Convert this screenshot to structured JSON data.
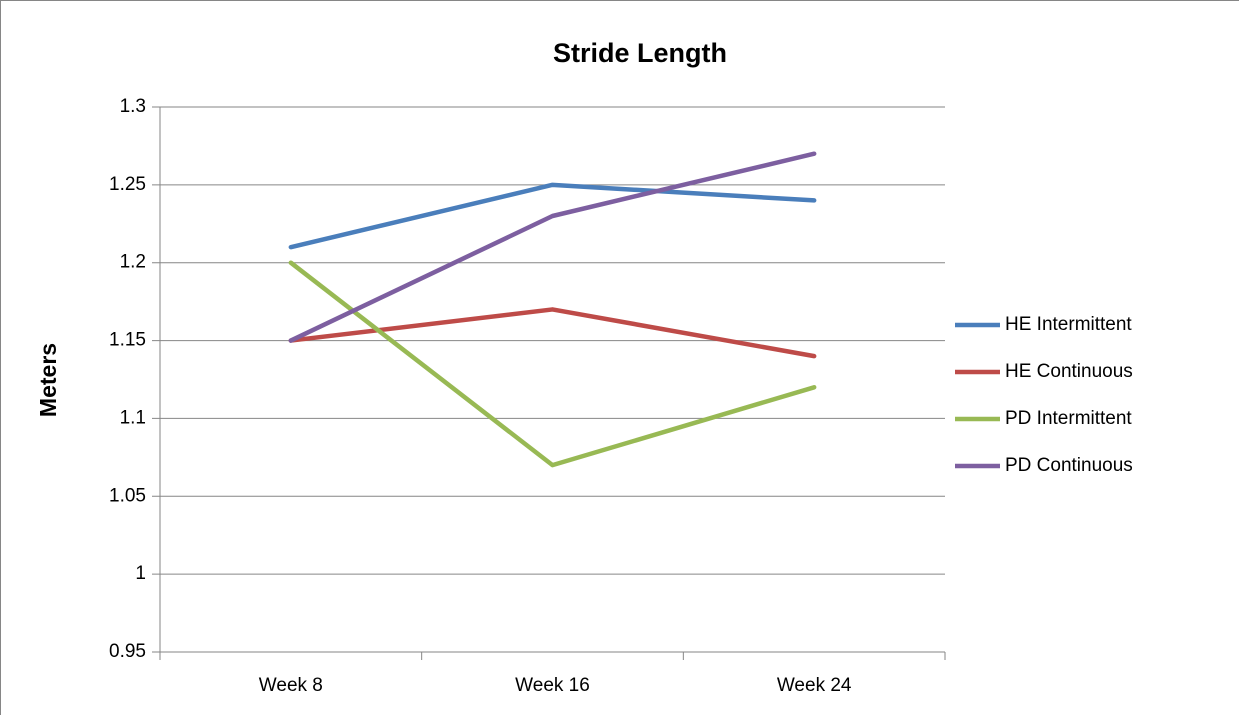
{
  "chart_data": {
    "type": "line",
    "title": "Stride Length",
    "y_label": "Meters",
    "categories": [
      "Week 8",
      "Week 16",
      "Week 24"
    ],
    "series": [
      {
        "name": "HE Intermittent",
        "color": "#4a7ebb",
        "values": [
          1.21,
          1.25,
          1.24
        ]
      },
      {
        "name": "HE Continuous",
        "color": "#be4b48",
        "values": [
          1.15,
          1.17,
          1.14
        ]
      },
      {
        "name": "PD Intermittent",
        "color": "#98b954",
        "values": [
          1.2,
          1.07,
          1.12
        ]
      },
      {
        "name": "PD Continuous",
        "color": "#7d5fa0",
        "values": [
          1.15,
          1.23,
          1.27
        ]
      }
    ],
    "ylim": [
      0.95,
      1.3
    ],
    "yticks": [
      0.95,
      1,
      1.05,
      1.1,
      1.15,
      1.2,
      1.25,
      1.3
    ],
    "grid": true,
    "legend": "right"
  }
}
